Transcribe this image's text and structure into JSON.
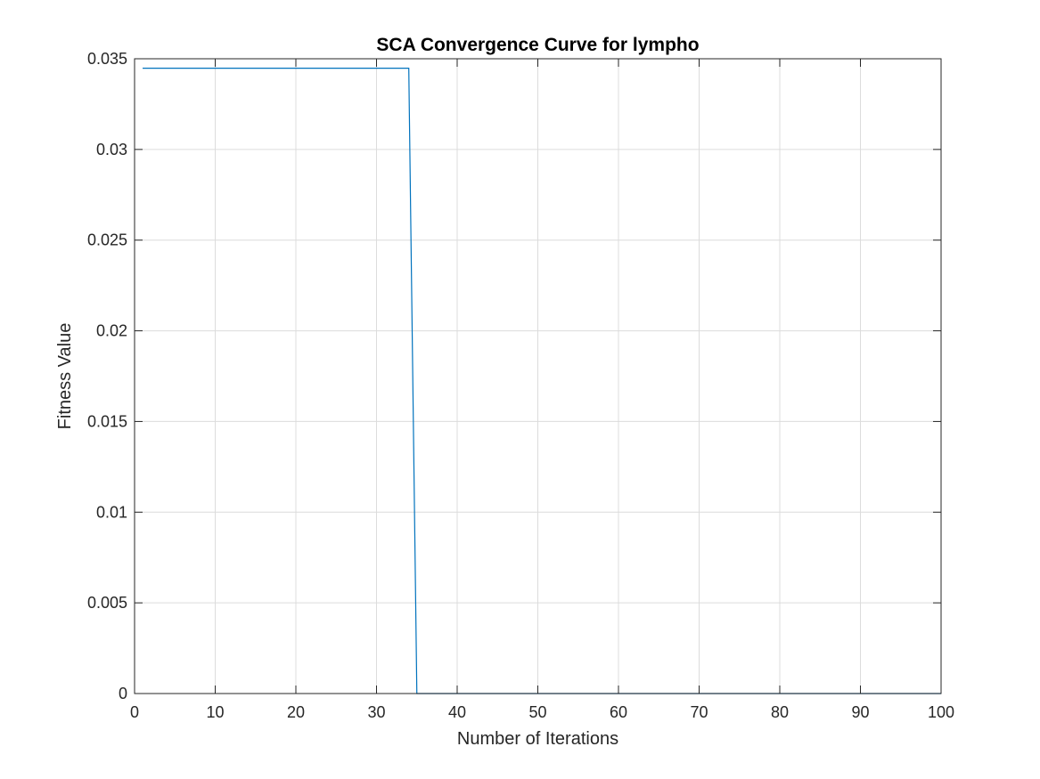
{
  "chart_data": {
    "type": "line",
    "title": "SCA Convergence Curve for lympho",
    "xlabel": "Number of Iterations",
    "ylabel": "Fitness Value",
    "xlim": [
      0,
      100
    ],
    "ylim": [
      0,
      0.035
    ],
    "xticks": [
      "0",
      "10",
      "20",
      "30",
      "40",
      "50",
      "60",
      "70",
      "80",
      "90",
      "100"
    ],
    "yticks": [
      "0",
      "0.005",
      "0.01",
      "0.015",
      "0.02",
      "0.025",
      "0.03",
      "0.035"
    ],
    "grid": true,
    "series": [
      {
        "color": "#0072BD",
        "x": [
          1,
          34,
          35,
          100
        ],
        "y": [
          0.03448,
          0.03448,
          0,
          0
        ]
      }
    ]
  }
}
